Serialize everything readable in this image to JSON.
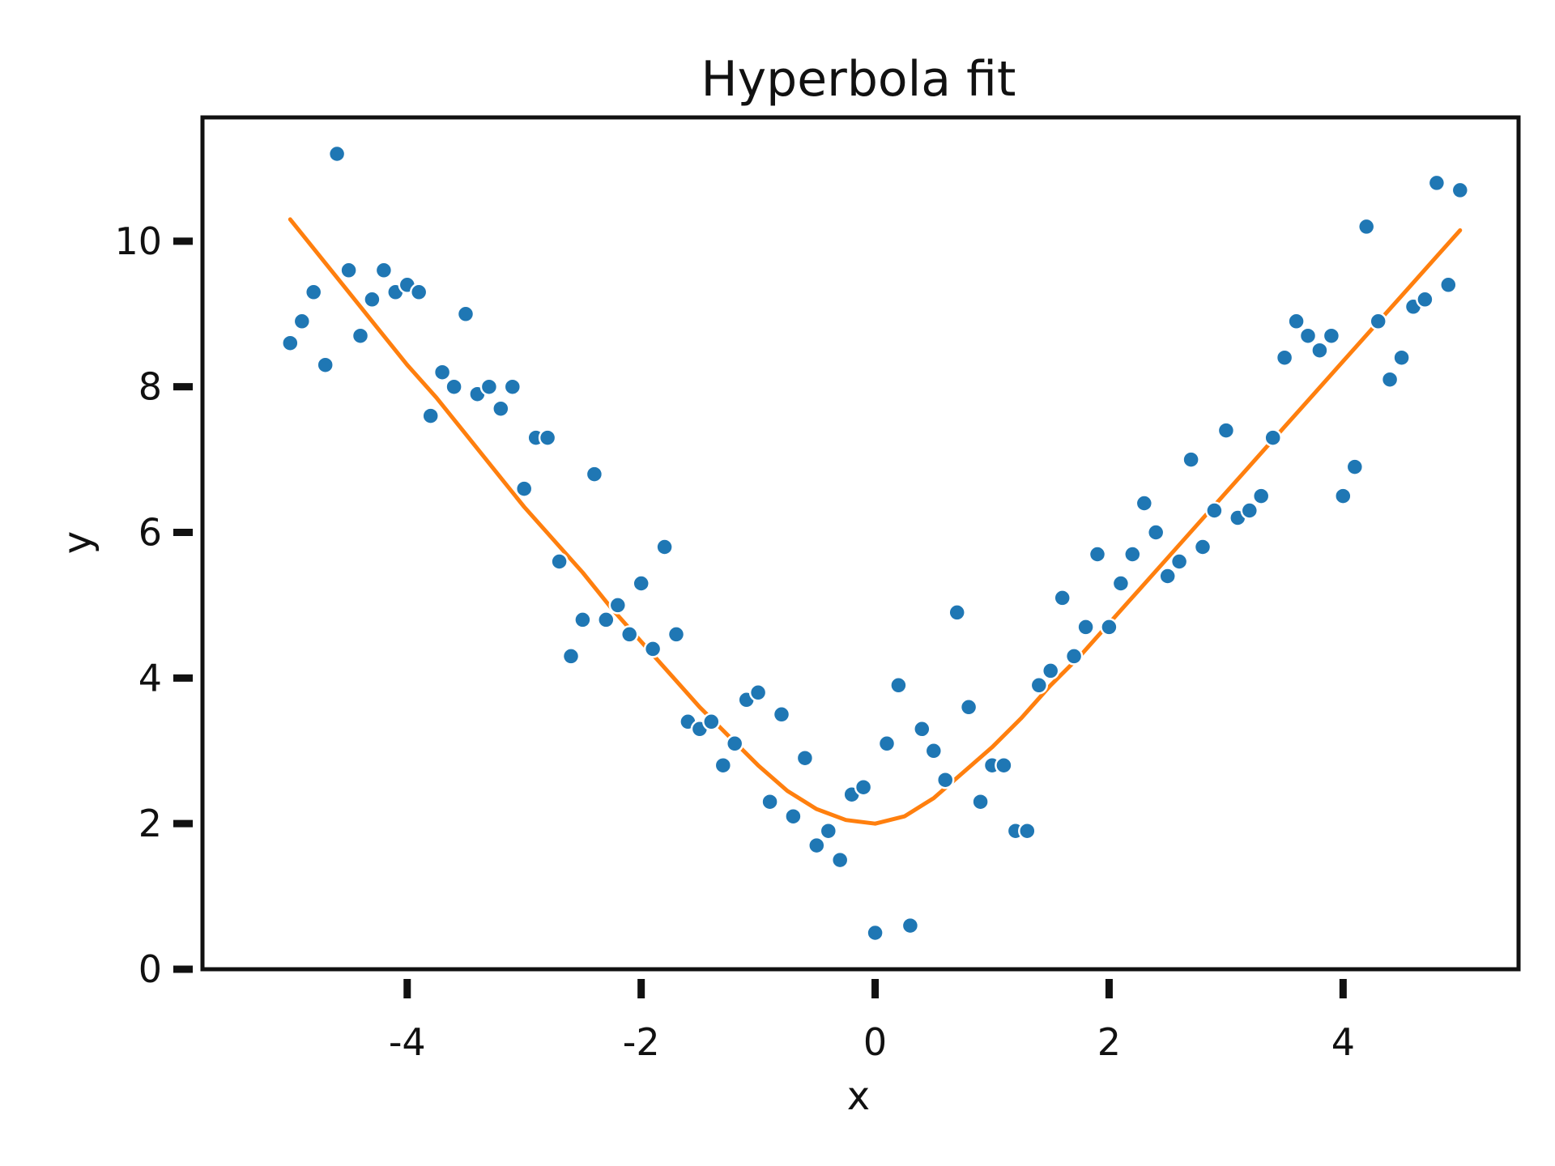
{
  "chart_data": {
    "type": "scatter",
    "title": "Hyperbola fit",
    "xlabel": "x",
    "ylabel": "y",
    "xlim": [
      -5.75,
      5.5
    ],
    "ylim": [
      0,
      11.7
    ],
    "xticks": [
      -4,
      -2,
      0,
      2,
      4
    ],
    "yticks": [
      0,
      2,
      4,
      6,
      8,
      10
    ],
    "xtick_labels": [
      "-4",
      "-2",
      "0",
      "2",
      "4"
    ],
    "ytick_labels": [
      "0",
      "2",
      "4",
      "6",
      "8",
      "10"
    ],
    "grid": false,
    "colors": {
      "points": "#1f77b4",
      "fit": "#ff7f0e",
      "axes": "#111111"
    },
    "series": [
      {
        "kind": "scatter",
        "x": [
          -5.0,
          -4.9,
          -4.8,
          -4.7,
          -4.6,
          -4.5,
          -4.4,
          -4.3,
          -4.2,
          -4.1,
          -4.0,
          -3.9,
          -3.8,
          -3.7,
          -3.6,
          -3.5,
          -3.4,
          -3.3,
          -3.2,
          -3.1,
          -3.0,
          -2.9,
          -2.8,
          -2.7,
          -2.6,
          -2.5,
          -2.4,
          -2.3,
          -2.2,
          -2.1,
          -2.0,
          -1.9,
          -1.8,
          -1.7,
          -1.6,
          -1.5,
          -1.4,
          -1.3,
          -1.2,
          -1.1,
          -1.0,
          -0.9,
          -0.8,
          -0.7,
          -0.6,
          -0.5,
          -0.4,
          -0.3,
          -0.2,
          -0.1,
          0.0,
          0.1,
          0.2,
          0.3,
          0.4,
          0.5,
          0.6,
          0.7,
          0.8,
          0.9,
          1.0,
          1.1,
          1.2,
          1.3,
          1.4,
          1.5,
          1.6,
          1.7,
          1.8,
          1.9,
          2.0,
          2.1,
          2.2,
          2.3,
          2.4,
          2.5,
          2.6,
          2.7,
          2.8,
          2.9,
          3.0,
          3.1,
          3.2,
          3.3,
          3.4,
          3.5,
          3.6,
          3.7,
          3.8,
          3.9,
          4.0,
          4.1,
          4.2,
          4.3,
          4.4,
          4.5,
          4.6,
          4.7,
          4.8,
          4.9,
          5.0
        ],
        "y": [
          8.6,
          8.9,
          9.3,
          8.3,
          11.2,
          9.6,
          8.7,
          9.2,
          9.6,
          9.3,
          9.4,
          9.3,
          7.6,
          8.2,
          8.0,
          9.0,
          7.9,
          8.0,
          7.7,
          8.0,
          6.6,
          7.3,
          7.3,
          5.6,
          4.3,
          4.8,
          6.8,
          4.8,
          5.0,
          4.6,
          5.3,
          4.4,
          5.8,
          4.6,
          3.4,
          3.3,
          3.4,
          2.8,
          3.1,
          3.7,
          3.8,
          2.3,
          3.5,
          2.1,
          2.9,
          1.7,
          1.9,
          1.5,
          2.4,
          2.5,
          0.5,
          3.1,
          3.9,
          0.6,
          3.3,
          3.0,
          2.6,
          4.9,
          3.6,
          2.3,
          2.8,
          2.8,
          1.9,
          1.9,
          3.9,
          4.1,
          5.1,
          4.3,
          4.7,
          5.7,
          4.7,
          5.3,
          5.7,
          6.4,
          6.0,
          5.4,
          5.6,
          7.0,
          5.8,
          6.3,
          7.4,
          6.2,
          6.3,
          6.5,
          7.3,
          8.4,
          8.9,
          8.7,
          8.5,
          8.7,
          6.5,
          6.9,
          10.2,
          8.9,
          8.1,
          8.4,
          9.1,
          9.2,
          10.8,
          9.4,
          10.7
        ]
      },
      {
        "kind": "line",
        "x": [
          -5.0,
          -4.75,
          -4.5,
          -4.25,
          -4.0,
          -3.75,
          -3.5,
          -3.25,
          -3.0,
          -2.75,
          -2.5,
          -2.25,
          -2.0,
          -1.75,
          -1.5,
          -1.25,
          -1.0,
          -0.75,
          -0.5,
          -0.25,
          0.0,
          0.25,
          0.5,
          0.75,
          1.0,
          1.25,
          1.5,
          1.75,
          2.0,
          2.25,
          2.5,
          2.75,
          3.0,
          3.25,
          3.5,
          3.75,
          4.0,
          4.25,
          4.5,
          4.75,
          5.0
        ],
        "y": [
          10.3,
          9.8,
          9.3,
          8.8,
          8.3,
          7.85,
          7.35,
          6.85,
          6.35,
          5.9,
          5.45,
          4.95,
          4.5,
          4.05,
          3.6,
          3.2,
          2.8,
          2.45,
          2.2,
          2.05,
          2.0,
          2.1,
          2.35,
          2.7,
          3.05,
          3.45,
          3.9,
          4.3,
          4.75,
          5.2,
          5.65,
          6.1,
          6.55,
          7.0,
          7.45,
          7.9,
          8.35,
          8.8,
          9.25,
          9.7,
          10.15
        ]
      }
    ]
  }
}
